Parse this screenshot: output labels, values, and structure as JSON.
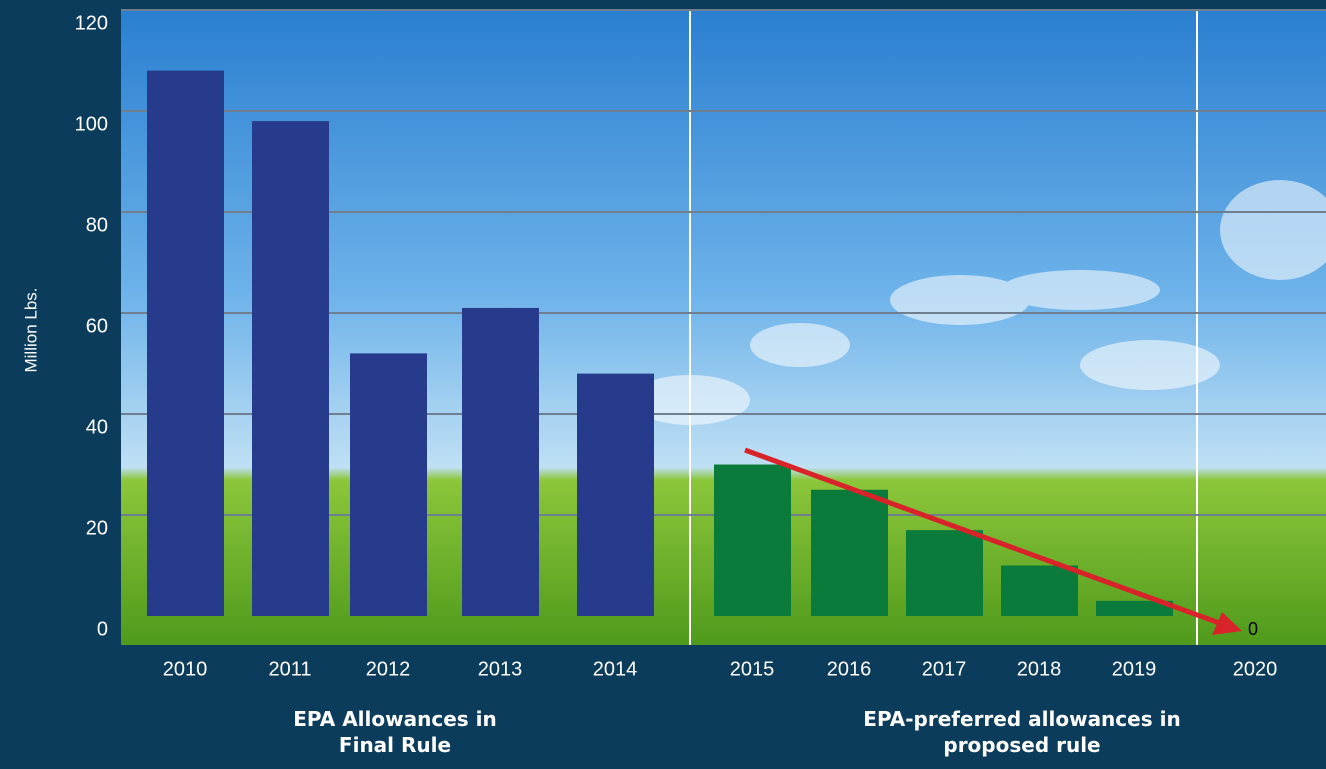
{
  "chart_data": {
    "type": "bar",
    "y_label": "Million Lbs.",
    "categories": [
      "2010",
      "2011",
      "2012",
      "2013",
      "2014",
      "2015",
      "2016",
      "2017",
      "2018",
      "2019",
      "2020"
    ],
    "values": [
      108,
      98,
      52,
      61,
      48,
      30,
      25,
      17,
      10,
      3,
      0
    ],
    "colors": [
      "#263b8c",
      "#263b8c",
      "#263b8c",
      "#263b8c",
      "#263b8c",
      "#0b7b3c",
      "#0b7b3c",
      "#0b7b3c",
      "#0b7b3c",
      "#0b7b3c",
      "#0b7b3c"
    ],
    "ylim": [
      0,
      120
    ],
    "yticks": [
      0,
      20,
      40,
      60,
      80,
      100,
      120
    ],
    "grid": true,
    "group_labels": [
      "EPA Allowances in Final Rule",
      "EPA-preferred allowances in proposed rule"
    ]
  }
}
